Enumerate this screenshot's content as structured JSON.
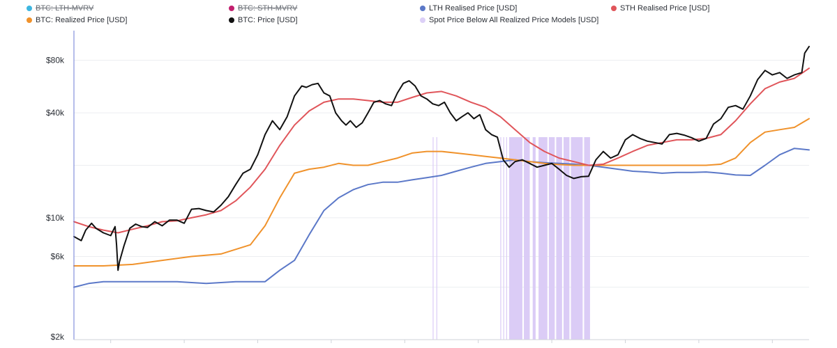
{
  "legend": [
    {
      "label": "BTC: LTH-MVRV",
      "color": "#3db6e0",
      "enabled": false
    },
    {
      "label": "BTC: STH-MVRV",
      "color": "#c21f6e",
      "enabled": false
    },
    {
      "label": "LTH Realised Price [USD]",
      "color": "#5b78c8",
      "enabled": true
    },
    {
      "label": "STH Realised Price [USD]",
      "color": "#e0555a",
      "enabled": true
    },
    {
      "label": "BTC: Realized Price [USD]",
      "color": "#f0922b",
      "enabled": true
    },
    {
      "label": "BTC: Price [USD]",
      "color": "#111111",
      "enabled": true
    },
    {
      "label": "Spot Price Below All Realized Price Models [USD]",
      "color": "#dcd0f7",
      "enabled": true
    }
  ],
  "chart_data": {
    "type": "line",
    "title": "",
    "xlabel": "",
    "ylabel": "",
    "y_scale": "log",
    "ylim": [
      2000,
      110000
    ],
    "y_ticks": [
      {
        "value": 2000,
        "label": "$2k"
      },
      {
        "value": 6000,
        "label": "$6k"
      },
      {
        "value": 10000,
        "label": "$10k"
      },
      {
        "value": 40000,
        "label": "$40k"
      },
      {
        "value": 80000,
        "label": "$80k"
      }
    ],
    "xlim": [
      2019.5,
      2024.5
    ],
    "grid": true,
    "legend_placement": "top",
    "series": [
      {
        "name": "BTC: Price [USD]",
        "color": "#111111",
        "x": [
          2019.5,
          2019.55,
          2019.58,
          2019.62,
          2019.65,
          2019.7,
          2019.75,
          2019.78,
          2019.79,
          2019.8,
          2019.81,
          2019.84,
          2019.88,
          2019.92,
          2019.96,
          2020.0,
          2020.05,
          2020.1,
          2020.15,
          2020.2,
          2020.25,
          2020.3,
          2020.35,
          2020.4,
          2020.45,
          2020.5,
          2020.55,
          2020.6,
          2020.65,
          2020.7,
          2020.75,
          2020.8,
          2020.85,
          2020.9,
          2020.95,
          2021.0,
          2021.05,
          2021.08,
          2021.12,
          2021.16,
          2021.2,
          2021.24,
          2021.28,
          2021.32,
          2021.35,
          2021.38,
          2021.42,
          2021.46,
          2021.5,
          2021.54,
          2021.58,
          2021.62,
          2021.66,
          2021.7,
          2021.74,
          2021.78,
          2021.82,
          2021.86,
          2021.9,
          2021.94,
          2021.98,
          2022.02,
          2022.06,
          2022.1,
          2022.14,
          2022.18,
          2022.22,
          2022.26,
          2022.3,
          2022.34,
          2022.38,
          2022.42,
          2022.46,
          2022.5,
          2022.55,
          2022.6,
          2022.65,
          2022.7,
          2022.75,
          2022.8,
          2022.85,
          2022.9,
          2022.95,
          2023.0,
          2023.05,
          2023.1,
          2023.15,
          2023.2,
          2023.25,
          2023.3,
          2023.35,
          2023.4,
          2023.45,
          2023.5,
          2023.55,
          2023.6,
          2023.65,
          2023.7,
          2023.75,
          2023.8,
          2023.85,
          2023.9,
          2023.95,
          2024.0,
          2024.05,
          2024.1,
          2024.15,
          2024.2,
          2024.25,
          2024.3,
          2024.35,
          2024.4,
          2024.45,
          2024.47,
          2024.5
        ],
        "y": [
          7800,
          7400,
          8500,
          9300,
          8700,
          8200,
          7900,
          8900,
          7000,
          5000,
          5600,
          6900,
          8700,
          9200,
          8900,
          8800,
          9500,
          9000,
          9700,
          9700,
          9300,
          11200,
          11300,
          11000,
          10800,
          11800,
          13200,
          15500,
          18000,
          19000,
          23000,
          30000,
          36000,
          32000,
          38000,
          50000,
          57000,
          56000,
          58000,
          59000,
          52000,
          50000,
          40000,
          36000,
          34000,
          36000,
          33000,
          35000,
          40000,
          46000,
          47000,
          45000,
          44000,
          52000,
          59000,
          61000,
          57000,
          50000,
          48000,
          45000,
          44000,
          46000,
          40000,
          36000,
          38000,
          40000,
          37000,
          39000,
          32000,
          30000,
          29000,
          21500,
          19500,
          21000,
          21500,
          20500,
          19500,
          20000,
          20500,
          19000,
          17500,
          16800,
          17200,
          17300,
          21500,
          24000,
          22000,
          23000,
          28000,
          30000,
          28500,
          27500,
          27000,
          26500,
          30000,
          30500,
          29800,
          28800,
          27500,
          28500,
          34500,
          37000,
          43000,
          44000,
          42000,
          50000,
          62000,
          70000,
          66000,
          68000,
          63000,
          66000,
          68000,
          88000,
          96000
        ],
        "line_width": 2
      },
      {
        "name": "STH Realised Price [USD]",
        "color": "#e0555a",
        "x": [
          2019.5,
          2019.6,
          2019.7,
          2019.8,
          2019.9,
          2020.0,
          2020.1,
          2020.2,
          2020.3,
          2020.4,
          2020.5,
          2020.6,
          2020.7,
          2020.8,
          2020.9,
          2021.0,
          2021.1,
          2021.2,
          2021.3,
          2021.4,
          2021.5,
          2021.6,
          2021.7,
          2021.8,
          2021.9,
          2022.0,
          2022.1,
          2022.2,
          2022.3,
          2022.4,
          2022.5,
          2022.6,
          2022.7,
          2022.8,
          2022.9,
          2023.0,
          2023.1,
          2023.2,
          2023.3,
          2023.4,
          2023.5,
          2023.6,
          2023.7,
          2023.8,
          2023.9,
          2024.0,
          2024.1,
          2024.2,
          2024.3,
          2024.4,
          2024.5
        ],
        "y": [
          9500,
          8900,
          8500,
          8200,
          8600,
          9000,
          9500,
          9600,
          10000,
          10400,
          11000,
          12500,
          15000,
          19000,
          26000,
          34000,
          41000,
          46000,
          48000,
          48000,
          47000,
          46000,
          46000,
          49000,
          52000,
          53000,
          50000,
          46000,
          43000,
          38000,
          32000,
          27000,
          24000,
          22000,
          21000,
          20000,
          20300,
          22000,
          24000,
          26000,
          27000,
          28000,
          28000,
          28500,
          30000,
          36000,
          45000,
          55000,
          60000,
          63000,
          72000
        ],
        "line_width": 2
      },
      {
        "name": "BTC: Realized Price [USD]",
        "color": "#f0922b",
        "x": [
          2019.5,
          2019.7,
          2019.9,
          2020.1,
          2020.3,
          2020.5,
          2020.7,
          2020.8,
          2020.9,
          2021.0,
          2021.1,
          2021.2,
          2021.3,
          2021.4,
          2021.5,
          2021.6,
          2021.7,
          2021.8,
          2021.9,
          2022.0,
          2022.1,
          2022.2,
          2022.3,
          2022.4,
          2022.5,
          2022.6,
          2022.7,
          2022.8,
          2022.9,
          2023.0,
          2023.1,
          2023.2,
          2023.3,
          2023.4,
          2023.5,
          2023.6,
          2023.7,
          2023.8,
          2023.9,
          2024.0,
          2024.1,
          2024.2,
          2024.3,
          2024.4,
          2024.5
        ],
        "y": [
          5300,
          5300,
          5400,
          5700,
          6000,
          6200,
          7000,
          9000,
          13000,
          18000,
          19000,
          19500,
          20500,
          20000,
          20000,
          21000,
          22000,
          23500,
          24000,
          24000,
          23500,
          23000,
          22500,
          22000,
          21500,
          21000,
          20500,
          20200,
          20000,
          20000,
          20000,
          20000,
          20000,
          20000,
          20000,
          20000,
          20000,
          20000,
          20300,
          22000,
          27000,
          31000,
          32000,
          33000,
          37000
        ],
        "line_width": 2
      },
      {
        "name": "LTH Realised Price [USD]",
        "color": "#5b78c8",
        "x": [
          2019.5,
          2019.6,
          2019.7,
          2019.8,
          2019.9,
          2020.0,
          2020.2,
          2020.4,
          2020.6,
          2020.8,
          2020.9,
          2021.0,
          2021.1,
          2021.2,
          2021.3,
          2021.4,
          2021.5,
          2021.6,
          2021.7,
          2021.8,
          2021.9,
          2022.0,
          2022.1,
          2022.2,
          2022.3,
          2022.4,
          2022.5,
          2022.6,
          2022.7,
          2022.8,
          2022.9,
          2023.0,
          2023.1,
          2023.2,
          2023.3,
          2023.4,
          2023.5,
          2023.6,
          2023.7,
          2023.8,
          2023.9,
          2024.0,
          2024.1,
          2024.2,
          2024.3,
          2024.4,
          2024.5
        ],
        "y": [
          4000,
          4200,
          4300,
          4300,
          4300,
          4300,
          4300,
          4200,
          4300,
          4300,
          5000,
          5700,
          8000,
          11000,
          13000,
          14500,
          15500,
          16000,
          16000,
          16500,
          17000,
          17500,
          18500,
          19500,
          20500,
          21000,
          21500,
          21000,
          20700,
          20500,
          20300,
          20000,
          19500,
          19000,
          18500,
          18300,
          18000,
          18200,
          18200,
          18300,
          18000,
          17600,
          17500,
          20000,
          23000,
          25000,
          24500
        ],
        "line_width": 2
      }
    ],
    "highlight_bands": [
      {
        "label": "Spot Price Below All Realized Price Models [USD]",
        "ranges": [
          [
            2021.94,
            2021.945
          ],
          [
            2021.965,
            2021.97
          ],
          [
            2022.4,
            2022.405
          ],
          [
            2022.42,
            2022.425
          ],
          [
            2022.44,
            2022.445
          ],
          [
            2022.46,
            2022.55
          ],
          [
            2022.56,
            2022.6
          ],
          [
            2022.62,
            2022.64
          ],
          [
            2022.66,
            2022.72
          ],
          [
            2022.73,
            2022.77
          ],
          [
            2022.78,
            2022.82
          ],
          [
            2022.83,
            2022.87
          ],
          [
            2022.88,
            2022.96
          ],
          [
            2022.97,
            2023.01
          ]
        ]
      }
    ]
  }
}
